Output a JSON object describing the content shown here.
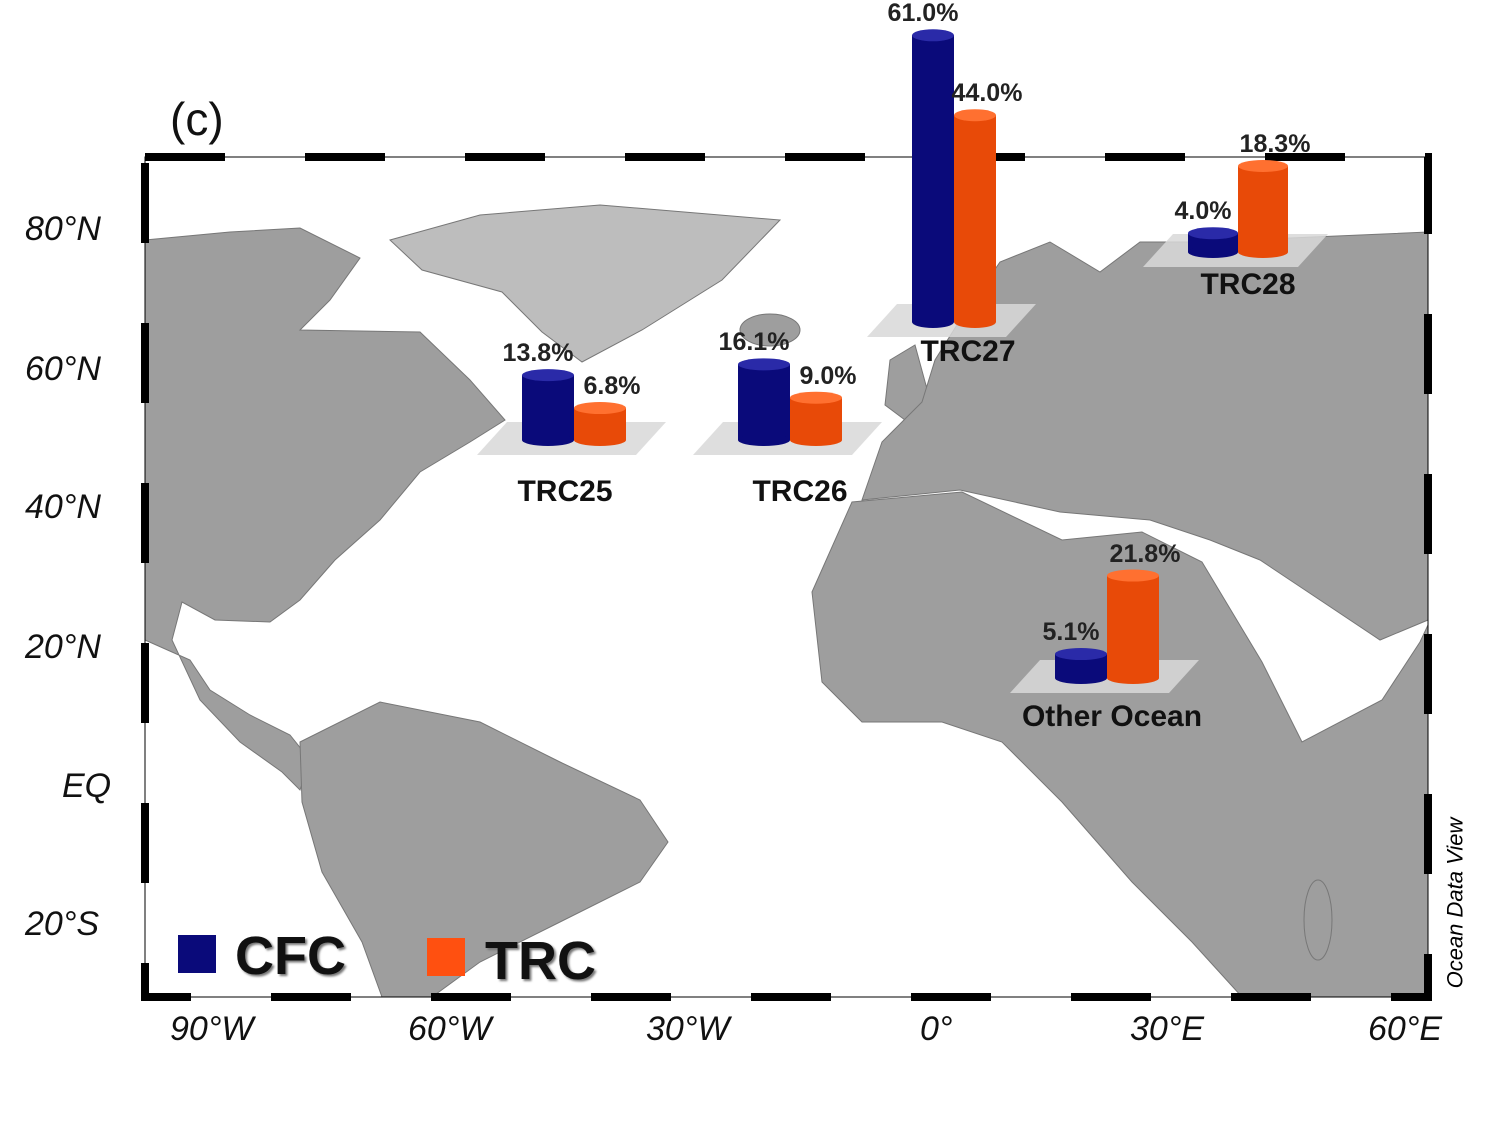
{
  "panel_label": "(c)",
  "watermark": "Ocean Data View",
  "axes": {
    "lat_ticks": [
      "80°N",
      "60°N",
      "40°N",
      "20°N",
      "EQ",
      "20°S"
    ],
    "lon_ticks": [
      "90°W",
      "60°W",
      "30°W",
      "0°",
      "30°E",
      "60°E"
    ]
  },
  "legend": [
    {
      "label": "CFC",
      "color": "#0a0a7a"
    },
    {
      "label": "TRC",
      "color": "#ff5010"
    }
  ],
  "chart_data": {
    "type": "bar",
    "title": "",
    "series": [
      {
        "name": "CFC",
        "values": [
          13.8,
          16.1,
          61.0,
          4.0,
          5.1
        ]
      },
      {
        "name": "TRC",
        "values": [
          6.8,
          9.0,
          44.0,
          18.3,
          21.8
        ]
      }
    ],
    "categories": [
      "TRC25",
      "TRC26",
      "TRC27",
      "TRC28",
      "Other Ocean"
    ],
    "value_labels": {
      "CFC": [
        "13.8%",
        "16.1%",
        "61.0%",
        "4.0%",
        "5.1%"
      ],
      "TRC": [
        "6.8%",
        "9.0%",
        "44.0%",
        "18.3%",
        "21.8%"
      ]
    },
    "unit": "%"
  }
}
